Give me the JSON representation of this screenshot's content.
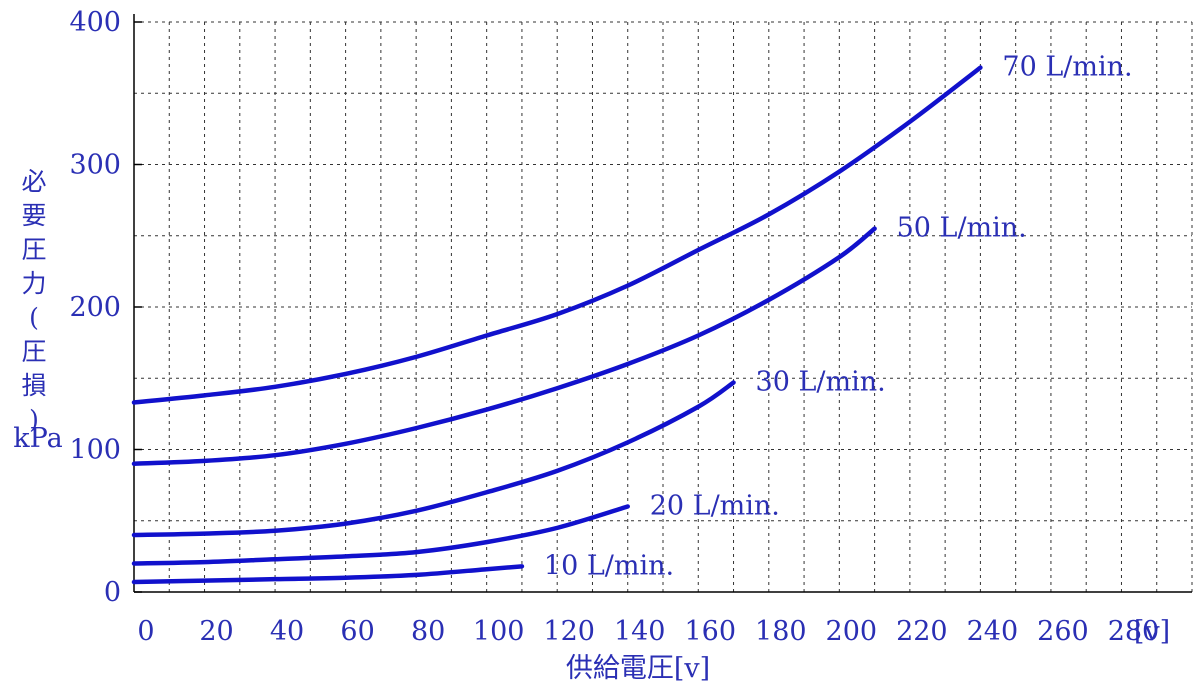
{
  "chart_data": {
    "type": "line",
    "title": "",
    "xlabel": "供給電圧[v]",
    "ylabel": "必要圧力(圧損)",
    "yunit": "kPa",
    "xunit": "[v]",
    "xlim": [
      0,
      300
    ],
    "ylim": [
      0,
      400
    ],
    "xticks": [
      0,
      20,
      40,
      60,
      80,
      100,
      120,
      140,
      160,
      180,
      200,
      220,
      240,
      260,
      280
    ],
    "yticks": [
      0,
      100,
      200,
      300,
      400
    ],
    "grid": true,
    "series": [
      {
        "name": "10 L/min.",
        "x": [
          0,
          20,
          40,
          60,
          80,
          100,
          110
        ],
        "y": [
          7,
          8,
          9,
          10,
          12,
          16,
          18
        ]
      },
      {
        "name": "20 L/min.",
        "x": [
          0,
          20,
          40,
          60,
          80,
          100,
          120,
          140
        ],
        "y": [
          20,
          21,
          23,
          25,
          28,
          35,
          45,
          60
        ]
      },
      {
        "name": "30 L/min.",
        "x": [
          0,
          20,
          40,
          60,
          80,
          100,
          120,
          140,
          160,
          170
        ],
        "y": [
          40,
          41,
          43,
          48,
          57,
          70,
          85,
          105,
          130,
          147
        ]
      },
      {
        "name": "50 L/min.",
        "x": [
          0,
          20,
          40,
          60,
          80,
          100,
          120,
          140,
          160,
          180,
          200,
          210
        ],
        "y": [
          90,
          92,
          96,
          104,
          115,
          128,
          143,
          160,
          180,
          205,
          235,
          255
        ]
      },
      {
        "name": "70 L/min.",
        "x": [
          0,
          20,
          40,
          60,
          80,
          100,
          120,
          140,
          160,
          180,
          200,
          220,
          240
        ],
        "y": [
          133,
          138,
          144,
          153,
          165,
          180,
          195,
          215,
          240,
          265,
          295,
          330,
          368
        ]
      }
    ],
    "colors": {
      "line": "#1111cc",
      "text": "#2a2fb4",
      "grid": "#333333",
      "axis": "#000000"
    }
  }
}
